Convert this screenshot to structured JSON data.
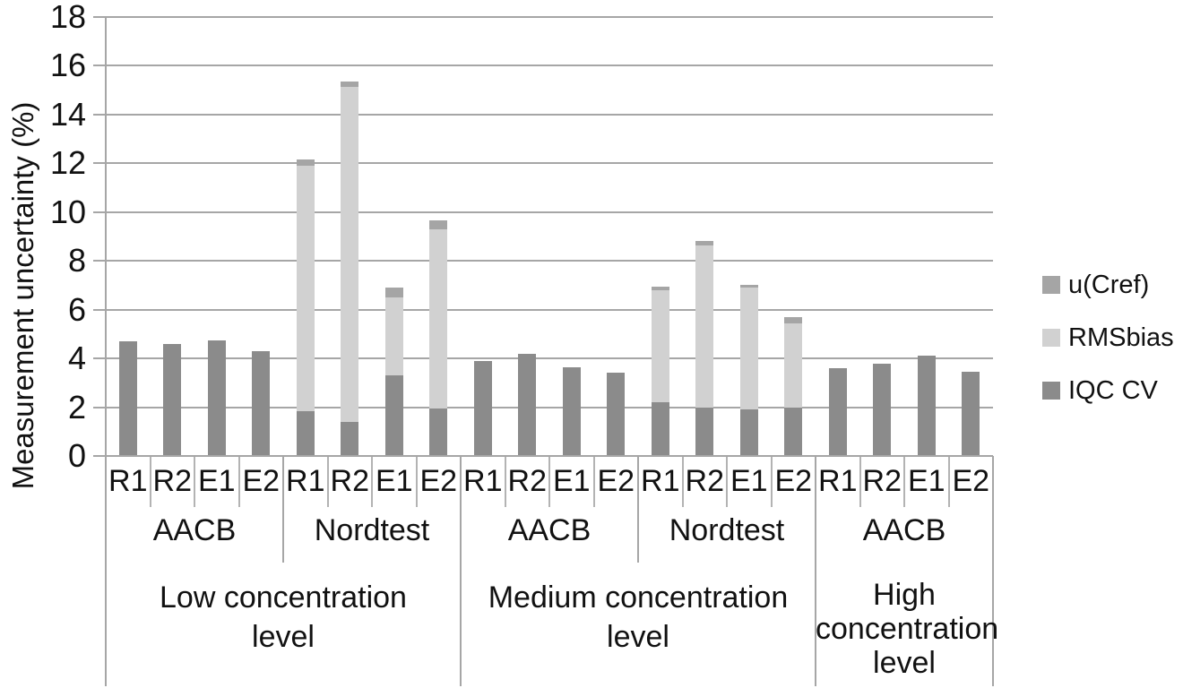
{
  "figure": {
    "ylabel": "Measurement uncertainty (%)"
  },
  "chart_data": {
    "type": "bar",
    "stacked": true,
    "title": "",
    "xlabel": "",
    "ylabel": "Measurement uncertainty (%)",
    "ylim": [
      0,
      18
    ],
    "ytick_step": 2,
    "yticks": [
      0,
      2,
      4,
      6,
      8,
      10,
      12,
      14,
      16,
      18
    ],
    "grid": true,
    "legend_position": "right",
    "legend": [
      {
        "name": "u(Cref)",
        "color": "#a5a5a5"
      },
      {
        "name": "RMSbias",
        "color": "#d1d1d1"
      },
      {
        "name": "IQC CV",
        "color": "#8b8b8b"
      }
    ],
    "stack_order_bottom_to_top": [
      "IQC CV",
      "RMSbias",
      "u(Cref)"
    ],
    "groups": [
      {
        "label": "Low concentration level",
        "label_lines": [
          "Low concentration",
          "level"
        ],
        "subgroups": [
          {
            "name": "AACB",
            "bars": [
              {
                "label": "R1",
                "IQC CV": 4.7,
                "RMSbias": 0,
                "u(Cref)": 0
              },
              {
                "label": "R2",
                "IQC CV": 4.6,
                "RMSbias": 0,
                "u(Cref)": 0
              },
              {
                "label": "E1",
                "IQC CV": 4.75,
                "RMSbias": 0,
                "u(Cref)": 0
              },
              {
                "label": "E2",
                "IQC CV": 4.3,
                "RMSbias": 0,
                "u(Cref)": 0
              }
            ]
          },
          {
            "name": "Nordtest",
            "bars": [
              {
                "label": "R1",
                "IQC CV": 1.85,
                "RMSbias": 10.05,
                "u(Cref)": 0.25
              },
              {
                "label": "R2",
                "IQC CV": 1.4,
                "RMSbias": 13.75,
                "u(Cref)": 0.2
              },
              {
                "label": "E1",
                "IQC CV": 3.3,
                "RMSbias": 3.2,
                "u(Cref)": 0.4
              },
              {
                "label": "E2",
                "IQC CV": 1.95,
                "RMSbias": 7.35,
                "u(Cref)": 0.35
              }
            ]
          }
        ]
      },
      {
        "label": "Medium concentration level",
        "label_lines": [
          "Medium concentration",
          "level"
        ],
        "subgroups": [
          {
            "name": "AACB",
            "bars": [
              {
                "label": "R1",
                "IQC CV": 3.9,
                "RMSbias": 0,
                "u(Cref)": 0
              },
              {
                "label": "R2",
                "IQC CV": 4.2,
                "RMSbias": 0,
                "u(Cref)": 0
              },
              {
                "label": "E1",
                "IQC CV": 3.65,
                "RMSbias": 0,
                "u(Cref)": 0
              },
              {
                "label": "E2",
                "IQC CV": 3.4,
                "RMSbias": 0,
                "u(Cref)": 0
              }
            ]
          },
          {
            "name": "Nordtest",
            "bars": [
              {
                "label": "R1",
                "IQC CV": 2.2,
                "RMSbias": 4.6,
                "u(Cref)": 0.15
              },
              {
                "label": "R2",
                "IQC CV": 2.0,
                "RMSbias": 6.65,
                "u(Cref)": 0.15
              },
              {
                "label": "E1",
                "IQC CV": 1.9,
                "RMSbias": 5.0,
                "u(Cref)": 0.1
              },
              {
                "label": "E2",
                "IQC CV": 2.0,
                "RMSbias": 3.45,
                "u(Cref)": 0.25
              }
            ]
          }
        ]
      },
      {
        "label": "High concentration level",
        "label_lines": [
          "High",
          "concentration",
          "level"
        ],
        "subgroups": [
          {
            "name": "AACB",
            "bars": [
              {
                "label": "R1",
                "IQC CV": 3.6,
                "RMSbias": 0,
                "u(Cref)": 0
              },
              {
                "label": "R2",
                "IQC CV": 3.8,
                "RMSbias": 0,
                "u(Cref)": 0
              },
              {
                "label": "E1",
                "IQC CV": 4.1,
                "RMSbias": 0,
                "u(Cref)": 0
              },
              {
                "label": "E2",
                "IQC CV": 3.45,
                "RMSbias": 0,
                "u(Cref)": 0
              }
            ]
          }
        ]
      }
    ]
  }
}
